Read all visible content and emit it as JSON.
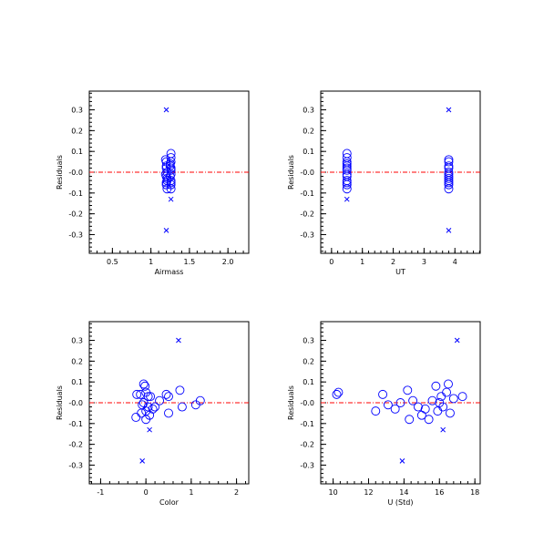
{
  "colors": {
    "marker": "#0000ff",
    "zero_line": "#ff0000",
    "axis": "#000000"
  },
  "chart_data": [
    {
      "id": "airmass",
      "type": "scatter",
      "xlabel": "Airmass",
      "ylabel": "Residuals",
      "xlim": [
        0.2,
        2.27
      ],
      "ylim": [
        -0.39,
        0.39
      ],
      "xticks": [
        0.5,
        1.0,
        1.5,
        2.0
      ],
      "xtick_labels": [
        "0.5",
        "1",
        "1.5",
        "2.0"
      ],
      "xminor_step": 0.1,
      "yticks": [
        -0.3,
        -0.2,
        -0.1,
        0.0,
        0.1,
        0.2,
        0.3
      ],
      "ytick_labels": [
        "-0.3",
        "-0.2",
        "-0.1",
        "-0.0",
        "0.1",
        "0.2",
        "0.3"
      ],
      "yminor_step": 0.02,
      "reference_line_y": 0,
      "circles": [
        [
          1.2,
          0.05
        ],
        [
          1.2,
          0.03
        ],
        [
          1.21,
          0.0
        ],
        [
          1.2,
          -0.02
        ],
        [
          1.21,
          -0.04
        ],
        [
          1.2,
          -0.06
        ],
        [
          1.21,
          -0.08
        ],
        [
          1.19,
          0.06
        ],
        [
          1.2,
          0.02
        ],
        [
          1.19,
          -0.01
        ],
        [
          1.21,
          -0.03
        ],
        [
          1.2,
          -0.05
        ],
        [
          1.26,
          0.09
        ],
        [
          1.26,
          0.07
        ],
        [
          1.26,
          0.05
        ],
        [
          1.25,
          0.03
        ],
        [
          1.26,
          0.01
        ],
        [
          1.26,
          -0.01
        ],
        [
          1.25,
          -0.02
        ],
        [
          1.26,
          -0.04
        ],
        [
          1.26,
          -0.05
        ],
        [
          1.26,
          -0.06
        ],
        [
          1.26,
          -0.08
        ],
        [
          1.25,
          0.04
        ],
        [
          1.26,
          0.02
        ]
      ],
      "crosses": [
        [
          1.2,
          0.3
        ],
        [
          1.26,
          -0.13
        ],
        [
          1.2,
          -0.28
        ]
      ]
    },
    {
      "id": "ut",
      "type": "scatter",
      "xlabel": "UT",
      "ylabel": "Residuals",
      "xlim": [
        -0.35,
        4.82
      ],
      "ylim": [
        -0.39,
        0.39
      ],
      "xticks": [
        0,
        1,
        2,
        3,
        4
      ],
      "xtick_labels": [
        "0",
        "1",
        "2",
        "3",
        "4"
      ],
      "xminor_step": 0.2,
      "yticks": [
        -0.3,
        -0.2,
        -0.1,
        0.0,
        0.1,
        0.2,
        0.3
      ],
      "ytick_labels": [
        "-0.3",
        "-0.2",
        "-0.1",
        "-0.0",
        "0.1",
        "0.2",
        "0.3"
      ],
      "yminor_step": 0.02,
      "reference_line_y": 0,
      "circles": [
        [
          0.5,
          0.09
        ],
        [
          0.5,
          0.07
        ],
        [
          0.5,
          0.05
        ],
        [
          0.5,
          0.03
        ],
        [
          0.5,
          0.01
        ],
        [
          0.5,
          -0.01
        ],
        [
          0.5,
          -0.02
        ],
        [
          0.5,
          -0.04
        ],
        [
          0.5,
          -0.05
        ],
        [
          0.5,
          -0.06
        ],
        [
          0.5,
          -0.08
        ],
        [
          0.5,
          0.04
        ],
        [
          0.5,
          0.02
        ],
        [
          3.8,
          0.05
        ],
        [
          3.8,
          0.03
        ],
        [
          3.8,
          0.0
        ],
        [
          3.8,
          -0.02
        ],
        [
          3.8,
          -0.04
        ],
        [
          3.8,
          -0.06
        ],
        [
          3.8,
          -0.08
        ],
        [
          3.8,
          0.06
        ],
        [
          3.8,
          0.02
        ],
        [
          3.8,
          -0.01
        ],
        [
          3.8,
          -0.03
        ],
        [
          3.8,
          -0.05
        ]
      ],
      "crosses": [
        [
          0.5,
          -0.13
        ],
        [
          3.8,
          0.3
        ],
        [
          3.8,
          -0.28
        ]
      ]
    },
    {
      "id": "color",
      "type": "scatter",
      "xlabel": "Color",
      "ylabel": "Residuals",
      "xlim": [
        -1.25,
        2.27
      ],
      "ylim": [
        -0.39,
        0.39
      ],
      "xticks": [
        -1,
        0,
        1,
        2
      ],
      "xtick_labels": [
        "-1",
        "0",
        "1",
        "2"
      ],
      "xminor_step": 0.2,
      "yticks": [
        -0.3,
        -0.2,
        -0.1,
        0.0,
        0.1,
        0.2,
        0.3
      ],
      "ytick_labels": [
        "-0.3",
        "-0.2",
        "-0.1",
        "-0.0",
        "0.1",
        "0.2",
        "0.3"
      ],
      "yminor_step": 0.02,
      "reference_line_y": 0,
      "circles": [
        [
          -0.05,
          0.09
        ],
        [
          -0.02,
          0.08
        ],
        [
          0.0,
          0.05
        ],
        [
          -0.12,
          0.04
        ],
        [
          -0.2,
          0.04
        ],
        [
          0.05,
          0.03
        ],
        [
          0.1,
          0.03
        ],
        [
          -0.05,
          0.0
        ],
        [
          -0.08,
          -0.01
        ],
        [
          0.05,
          -0.02
        ],
        [
          0.15,
          -0.03
        ],
        [
          0.0,
          -0.04
        ],
        [
          -0.1,
          -0.05
        ],
        [
          0.08,
          -0.06
        ],
        [
          -0.22,
          -0.07
        ],
        [
          0.0,
          -0.08
        ],
        [
          0.2,
          -0.02
        ],
        [
          0.3,
          0.01
        ],
        [
          0.45,
          0.04
        ],
        [
          0.5,
          0.03
        ],
        [
          0.75,
          0.06
        ],
        [
          0.8,
          -0.02
        ],
        [
          1.2,
          0.01
        ],
        [
          1.1,
          -0.01
        ],
        [
          0.5,
          -0.05
        ]
      ],
      "crosses": [
        [
          0.72,
          0.3
        ],
        [
          0.08,
          -0.13
        ],
        [
          -0.08,
          -0.28
        ]
      ]
    },
    {
      "id": "ustd",
      "type": "scatter",
      "xlabel": "U (Std)",
      "ylabel": "Residuals",
      "xlim": [
        9.3,
        18.3
      ],
      "ylim": [
        -0.39,
        0.39
      ],
      "xticks": [
        10,
        12,
        14,
        16,
        18
      ],
      "xtick_labels": [
        "10",
        "12",
        "14",
        "16",
        "18"
      ],
      "xminor_step": 0.4,
      "yticks": [
        -0.3,
        -0.2,
        -0.1,
        0.0,
        0.1,
        0.2,
        0.3
      ],
      "ytick_labels": [
        "-0.3",
        "-0.2",
        "-0.1",
        "-0.0",
        "0.1",
        "0.2",
        "0.3"
      ],
      "yminor_step": 0.02,
      "reference_line_y": 0,
      "circles": [
        [
          10.2,
          0.04
        ],
        [
          10.3,
          0.05
        ],
        [
          12.4,
          -0.04
        ],
        [
          12.8,
          0.04
        ],
        [
          13.1,
          -0.01
        ],
        [
          13.5,
          -0.03
        ],
        [
          13.8,
          0.0
        ],
        [
          14.2,
          0.06
        ],
        [
          14.3,
          -0.08
        ],
        [
          14.5,
          0.01
        ],
        [
          14.8,
          -0.02
        ],
        [
          15.0,
          -0.06
        ],
        [
          15.2,
          -0.03
        ],
        [
          15.4,
          -0.08
        ],
        [
          15.6,
          0.01
        ],
        [
          15.8,
          0.08
        ],
        [
          15.9,
          -0.04
        ],
        [
          16.0,
          0.0
        ],
        [
          16.1,
          0.03
        ],
        [
          16.2,
          -0.02
        ],
        [
          16.4,
          0.05
        ],
        [
          16.5,
          0.09
        ],
        [
          16.6,
          -0.05
        ],
        [
          16.8,
          0.02
        ],
        [
          17.3,
          0.03
        ]
      ],
      "crosses": [
        [
          16.2,
          -0.13
        ],
        [
          17.0,
          0.3
        ],
        [
          13.9,
          -0.28
        ]
      ]
    }
  ]
}
